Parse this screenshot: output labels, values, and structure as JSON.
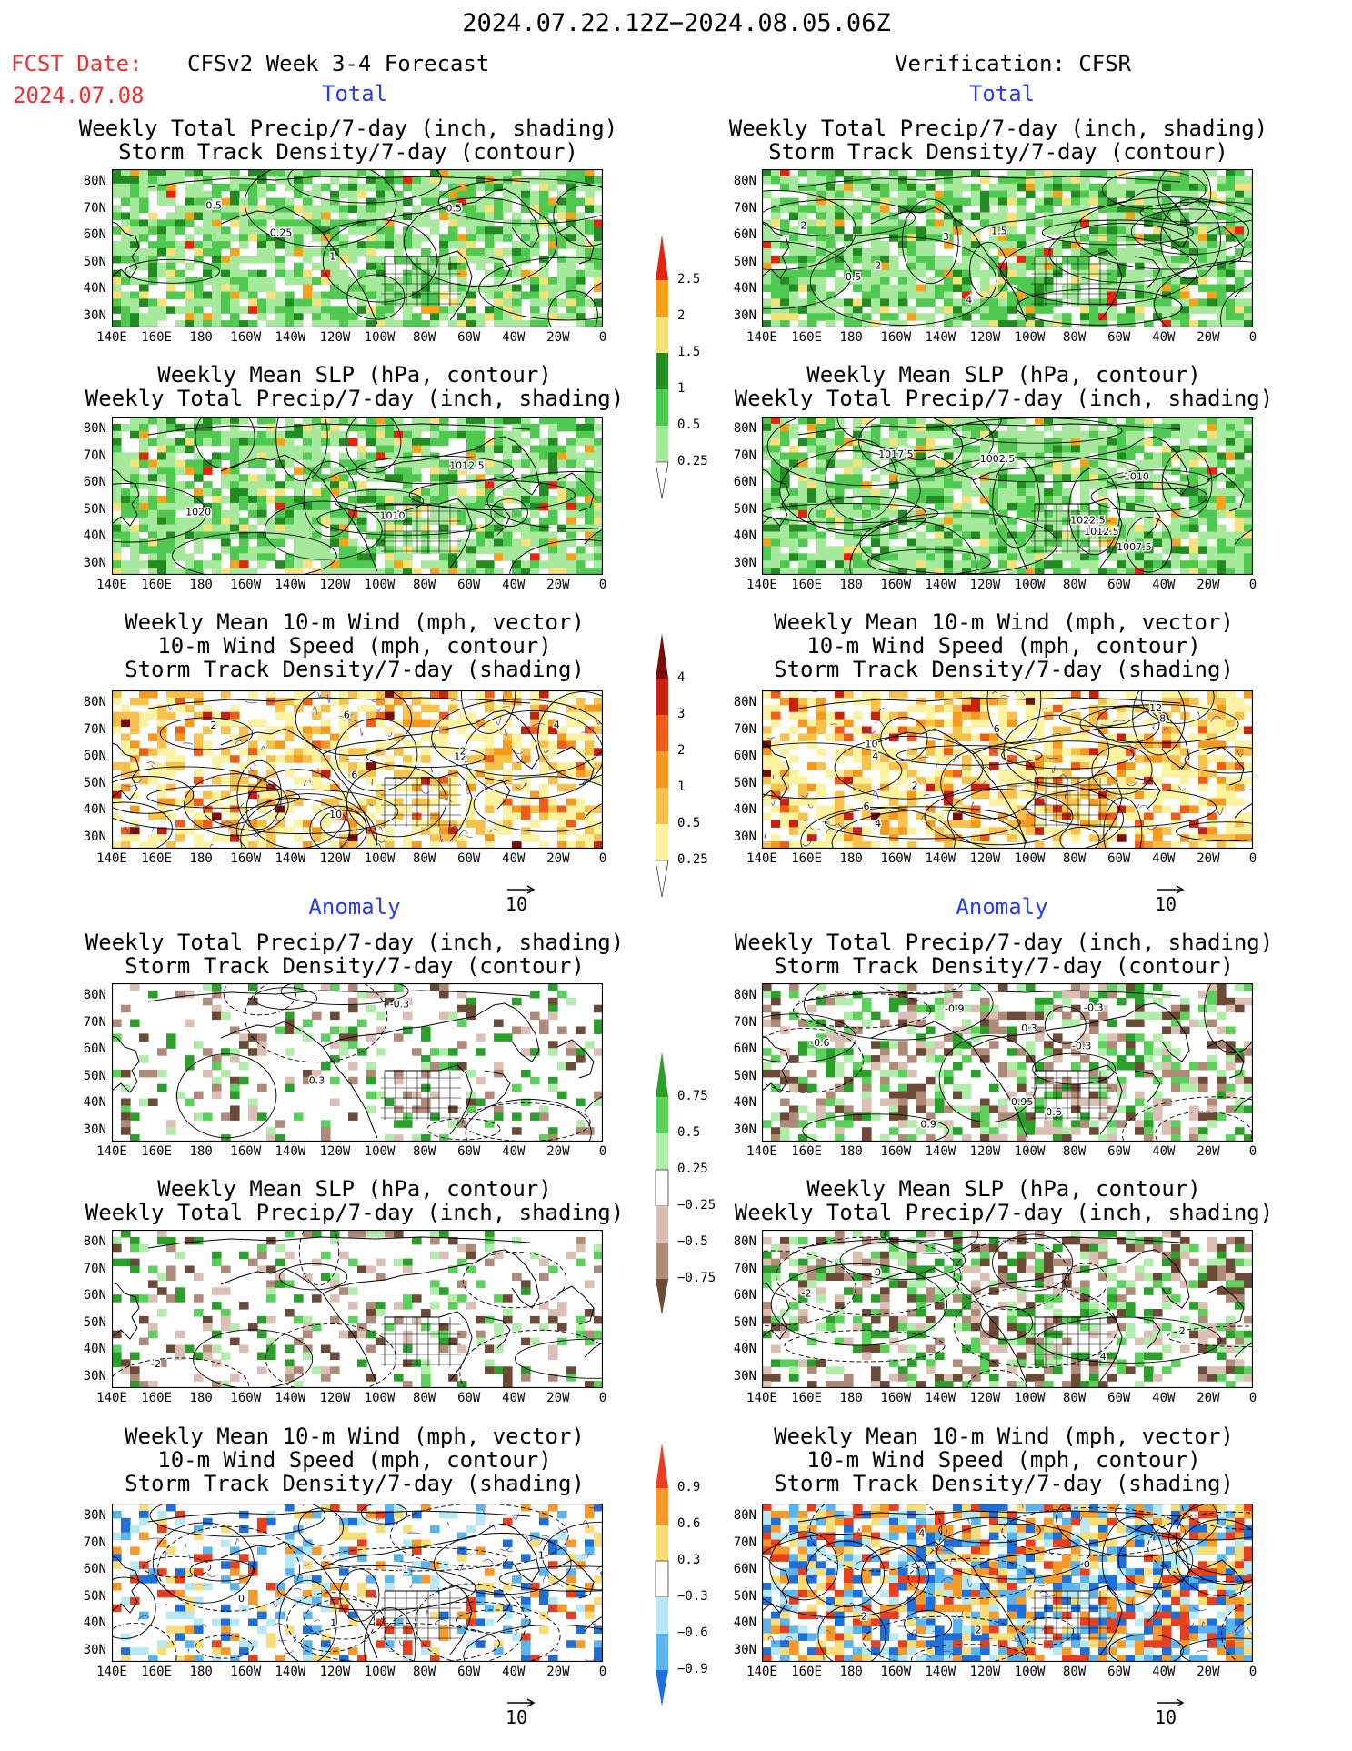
{
  "header": {
    "date_range": "2024.07.22.12Z−2024.08.05.06Z",
    "fcst_date_label": "FCST Date:",
    "fcst_date_value": "2024.07.08",
    "forecast_name": "CFSv2 Week 3-4 Forecast",
    "verification": "Verification: CFSR"
  },
  "sections": {
    "total": "Total",
    "anomaly": "Anomaly"
  },
  "panel_titles": {
    "precip_storm": "Weekly Total Precip/7-day (inch, shading)\nStorm Track Density/7-day (contour)",
    "slp_precip": "Weekly Mean SLP (hPa, contour)\nWeekly Total Precip/7-day (inch, shading)",
    "wind_storm": "Weekly Mean 10-m Wind (mph, vector)\n10-m Wind Speed (mph, contour)\nStorm Track Density/7-day (shading)"
  },
  "axes": {
    "lat_ticks": [
      "80N",
      "70N",
      "60N",
      "50N",
      "40N",
      "30N"
    ],
    "lon_ticks": [
      "140E",
      "160E",
      "180",
      "160W",
      "140W",
      "120W",
      "100W",
      "80W",
      "60W",
      "40W",
      "20W",
      "0"
    ]
  },
  "vector_reference": "10",
  "colorbars": {
    "total_precip": {
      "ticks": [
        "2.5",
        "2",
        "1.5",
        "1",
        "0.5",
        "0.25"
      ],
      "colors": [
        "#e8240c",
        "#f7a21b",
        "#f8e07a",
        "#228b22",
        "#4fc94f",
        "#a6e89c",
        "#ffffff"
      ]
    },
    "total_storm": {
      "ticks": [
        "4",
        "3",
        "2",
        "1",
        "0.5",
        "0.25"
      ],
      "colors": [
        "#7b0c0c",
        "#c9200f",
        "#f05d17",
        "#f69a1f",
        "#f8c14b",
        "#fbf2a2",
        "#ffffff"
      ]
    },
    "anom_precip": {
      "ticks": [
        "0.75",
        "0.5",
        "0.25",
        "−0.25",
        "−0.5",
        "−0.75"
      ],
      "colors": [
        "#2aa02a",
        "#5bd05b",
        "#b0edaa",
        "#ffffff",
        "#dbbfb4",
        "#b08a78",
        "#6d4a38"
      ]
    },
    "anom_storm": {
      "ticks": [
        "0.9",
        "0.6",
        "0.3",
        "−0.3",
        "−0.6",
        "−0.9"
      ],
      "colors": [
        "#e8401c",
        "#f79a2a",
        "#f8dd78",
        "#ffffff",
        "#b7e8f5",
        "#5ab4ee",
        "#1f6fd8"
      ]
    }
  },
  "contour_labels": {
    "p1": [
      "0.25",
      "0.5",
      "0.5",
      "1"
    ],
    "p2": [
      "1012.5",
      "1010",
      "1020"
    ],
    "p3": [
      "2",
      "4",
      "6",
      "10",
      "12",
      "2",
      "6"
    ],
    "p4": [
      "-0.3",
      "0.3"
    ],
    "p5": [
      "-2"
    ],
    "p6": [
      "1",
      "0",
      "-1",
      "1"
    ],
    "q1": [
      "2",
      "3",
      "4",
      "2",
      "0.5",
      "1.5"
    ],
    "q2": [
      "1002.5",
      "1007.5",
      "1010",
      "1012.5",
      "1017.5",
      "1022.5"
    ],
    "q3": [
      "8",
      "4",
      "6",
      "4",
      "2",
      "12",
      "10",
      "6"
    ],
    "q4": [
      "0.9",
      "0.6",
      "0.3",
      "-0.3",
      "-0.9",
      "-0.6",
      "0.95",
      "-0.3"
    ],
    "q5": [
      "4",
      "-2",
      "2",
      "0"
    ],
    "q6": [
      "2",
      "2",
      "4",
      "0"
    ]
  }
}
